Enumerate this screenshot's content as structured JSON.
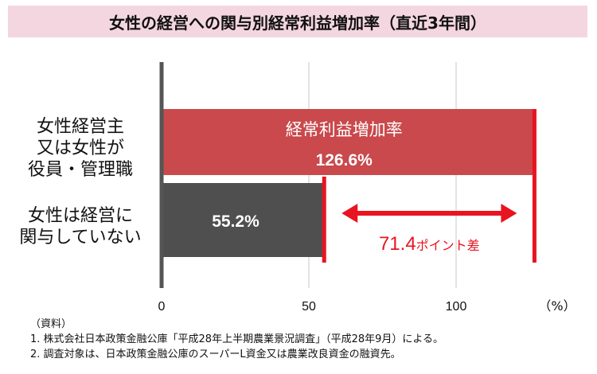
{
  "chart_data": {
    "type": "bar",
    "orientation": "horizontal",
    "title": "女性の経営への関与別経常利益増加率（直近3年間）",
    "categories": [
      "女性経営主\n又は女性が\n役員・管理職",
      "女性は経営に\n関与していない"
    ],
    "values": [
      126.6,
      55.2
    ],
    "value_labels": [
      "126.6%",
      "55.2%"
    ],
    "series_name": "経常利益増加率",
    "xlim": [
      0,
      130
    ],
    "xticks": [
      0,
      50,
      100
    ],
    "unit_label": "（%）",
    "grid": true,
    "annotation": {
      "value_text": "71.4",
      "suffix_text": "ポイント差",
      "from": 55.2,
      "to": 126.6
    },
    "colors": {
      "bar1": "#c9494c",
      "bar2": "#4f4f4f",
      "accent": "#e8141f",
      "axis": "#555555",
      "grid": "#c8c8c8"
    }
  },
  "notes": {
    "header": "（資料）",
    "line1": "1. 株式会社日本政策金融公庫「平成28年上半期農業景況調査」（平成28年9月）による。",
    "line2": "2. 調査対象は、日本政策金融公庫のスーパーL資金又は農業改良資金の融資先。"
  }
}
